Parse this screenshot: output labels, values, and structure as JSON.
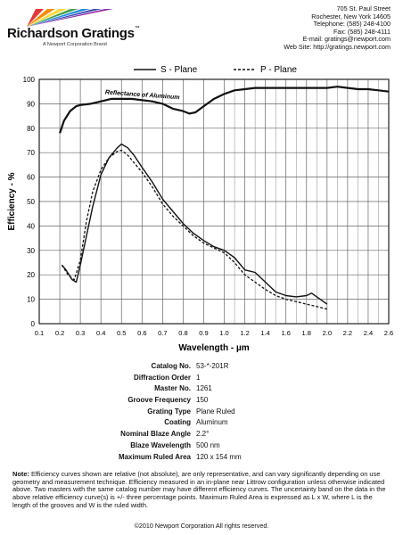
{
  "header": {
    "brand": "Richardson Gratings",
    "brand_tm": "™",
    "tagline": "A Newport Corporation Brand",
    "address_lines": [
      "705 St. Paul Street",
      "Rochester, New York 14605",
      "Telephone: (585) 248-4100",
      "Fax: (585) 248-4111",
      "E-mail: gratings@newport.com",
      "Web Site: http://gratings.newport.com"
    ]
  },
  "chart_data": {
    "type": "line",
    "xlabel": "Wavelength - µm",
    "ylabel": "Efficiency - %",
    "xlim": [
      0.1,
      2.6
    ],
    "ylim": [
      0,
      100
    ],
    "x_ticks": [
      "0.1",
      "0.2",
      "0.3",
      "0.4",
      "0.5",
      "0.6",
      "0.7",
      "0.8",
      "0.9",
      "1.0",
      "1.2",
      "1.4",
      "1.6",
      "1.8",
      "2.0",
      "2.2",
      "2.4",
      "2.6"
    ],
    "y_ticks": [
      "0",
      "10",
      "20",
      "30",
      "40",
      "50",
      "60",
      "70",
      "80",
      "90",
      "100"
    ],
    "legend": [
      "S - Plane",
      "P - Plane"
    ],
    "legend_position": "top",
    "annotation": "Reflectance of Aluminum",
    "grid": true,
    "series": [
      {
        "name": "S - Plane",
        "x": [
          0.21,
          0.23,
          0.26,
          0.28,
          0.3,
          0.33,
          0.36,
          0.4,
          0.44,
          0.48,
          0.5,
          0.53,
          0.56,
          0.6,
          0.65,
          0.7,
          0.75,
          0.8,
          0.85,
          0.9,
          0.95,
          1.0,
          1.1,
          1.2,
          1.3,
          1.4,
          1.5,
          1.6,
          1.7,
          1.8,
          1.85,
          1.9,
          2.0
        ],
        "y": [
          24,
          22,
          18,
          17,
          24,
          36,
          48,
          61,
          68,
          72,
          73.5,
          72,
          69,
          64,
          58,
          51,
          46,
          41,
          37,
          34,
          31.5,
          30,
          27,
          22,
          21,
          17,
          13,
          11.5,
          11,
          11.5,
          12.5,
          11,
          8
        ]
      },
      {
        "name": "P - Plane",
        "x": [
          0.21,
          0.24,
          0.27,
          0.3,
          0.33,
          0.36,
          0.4,
          0.44,
          0.48,
          0.5,
          0.53,
          0.56,
          0.6,
          0.65,
          0.7,
          0.75,
          0.8,
          0.85,
          0.9,
          0.95,
          1.0,
          1.1,
          1.2,
          1.3,
          1.4,
          1.5,
          1.6,
          1.7,
          1.8,
          1.9,
          2.0
        ],
        "y": [
          24,
          20,
          18,
          26,
          42,
          54,
          63,
          68,
          70.5,
          71,
          69,
          66,
          62,
          56,
          49,
          44,
          40,
          36,
          33,
          31,
          29,
          25,
          20,
          17,
          14,
          11.5,
          10,
          9,
          8,
          7,
          6
        ]
      },
      {
        "name": "Reflectance of Aluminum",
        "x": [
          0.2,
          0.22,
          0.25,
          0.28,
          0.3,
          0.35,
          0.4,
          0.45,
          0.5,
          0.55,
          0.6,
          0.65,
          0.7,
          0.75,
          0.8,
          0.83,
          0.86,
          0.9,
          0.95,
          1.0,
          1.1,
          1.2,
          1.3,
          1.4,
          1.5,
          1.6,
          1.7,
          1.8,
          1.9,
          2.0,
          2.1,
          2.2,
          2.3,
          2.4,
          2.5,
          2.6
        ],
        "y": [
          78,
          83,
          87,
          89,
          89.5,
          90,
          91,
          92,
          92,
          92,
          91.5,
          91,
          90,
          88,
          87,
          86,
          86.5,
          89,
          92,
          94,
          95.5,
          96,
          96.5,
          96.5,
          96.5,
          96.5,
          96.5,
          96.5,
          96.5,
          96.5,
          97,
          96.5,
          96,
          96,
          95.5,
          95
        ]
      }
    ]
  },
  "specs": [
    {
      "label": "Catalog No.",
      "value": "53-*-201R"
    },
    {
      "label": "Diffraction Order",
      "value": "1"
    },
    {
      "label": "Master No.",
      "value": "1261"
    },
    {
      "label": "Groove Frequency",
      "value": "150"
    },
    {
      "label": "Grating Type",
      "value": "Plane Ruled"
    },
    {
      "label": "Coating",
      "value": "Aluminum"
    },
    {
      "label": "Nominal Blaze Angle",
      "value": "2.2°"
    },
    {
      "label": "Blaze Wavelength",
      "value": "500 nm"
    },
    {
      "label": "Maximum Ruled Area",
      "value": "120 x 154 mm"
    }
  ],
  "note": {
    "label": "Note:",
    "text": " Efficiency curves shown are relative (not absolute), are only representative, and can vary significantly depending on use geometry and measurement technique. Efficiency measured in an in-plane near Littrow configuration unless otherwise indicated above. Two masters with the same catalog number may have different efficiency curves. The uncertainty band on the data in the above relative efficiency curve(s) is +/- three percentage points. Maximum Ruled Area is expressed as L x W, where L is the length of the grooves and W is the ruled width."
  },
  "copyright": "©2010 Newport Corporation All rights reserved.",
  "colors": {
    "rays": [
      "#e53935",
      "#fb8c00",
      "#fdd835",
      "#43a047",
      "#1e88e5",
      "#3949ab",
      "#8e24aa"
    ]
  }
}
